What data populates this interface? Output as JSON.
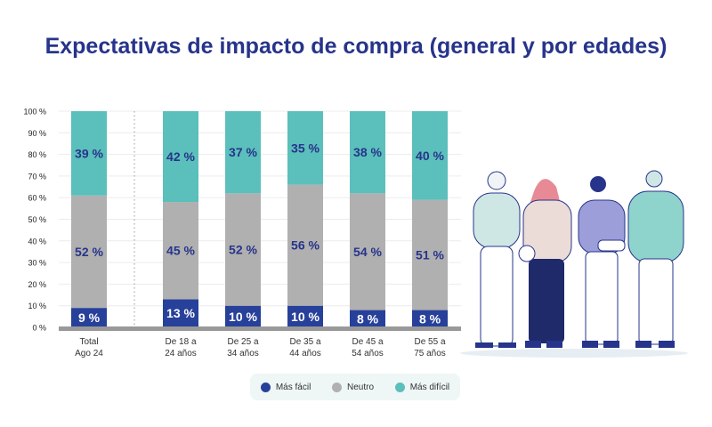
{
  "title": "Expectativas de impacto de compra (general y por edades)",
  "chart_data": {
    "type": "bar",
    "stacked": true,
    "title": "Expectativas de impacto de compra (general y por edades)",
    "categories": [
      "Total\nAgo 24",
      "De 18 a\n24 años",
      "De 25 a\n34 años",
      "De 35 a\n44 años",
      "De 45 a\n54 años",
      "De 55 a\n75 años"
    ],
    "category_lines": [
      [
        "Total",
        "Ago 24"
      ],
      [
        "De 18 a",
        "24 años"
      ],
      [
        "De 25 a",
        "34 años"
      ],
      [
        "De 35 a",
        "44 años"
      ],
      [
        "De 45 a",
        "54 años"
      ],
      [
        "De 55 a",
        "75 años"
      ]
    ],
    "series": [
      {
        "name": "Más fácil",
        "color": "#27409a",
        "values": [
          9,
          13,
          10,
          10,
          8,
          8
        ]
      },
      {
        "name": "Neutro",
        "color": "#b0b0b0",
        "values": [
          52,
          45,
          52,
          56,
          54,
          51
        ]
      },
      {
        "name": "Más difícil",
        "color": "#5bbfbb",
        "values": [
          39,
          42,
          37,
          35,
          38,
          40
        ]
      }
    ],
    "ylim": [
      0,
      100
    ],
    "yticks": [
      "0 %",
      "10 %",
      "20 %",
      "30 %",
      "40 %",
      "50 %",
      "60 %",
      "70 %",
      "80 %",
      "90 %",
      "100 %"
    ],
    "grid": true,
    "legend_position": "bottom"
  }
}
